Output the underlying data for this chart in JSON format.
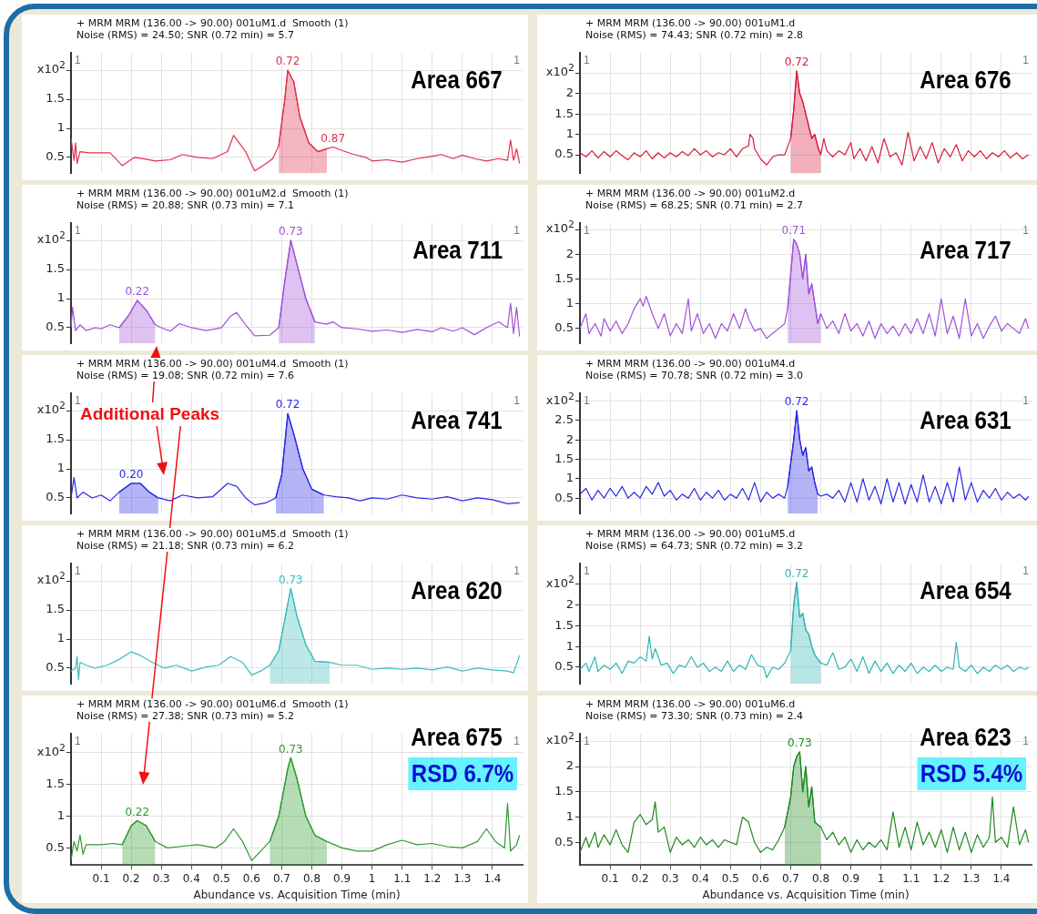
{
  "chart_data": [
    {
      "type": "line",
      "title": "+ MRM MRM (136.00 -> 90.00) 001uM1.d  Smooth (1)",
      "subtitle": "Noise (RMS) = 24.50; SNR (0.72 min) = 5.7",
      "ylabel": "x10$^{2}$",
      "xlim": [
        0,
        1.5
      ],
      "ylim": [
        0.23,
        2.3
      ],
      "xticks": [
        0.1,
        0.2,
        0.3,
        0.4,
        0.5,
        0.6,
        0.7,
        0.8,
        0.9,
        1,
        1.1,
        1.2,
        1.3,
        1.4
      ],
      "yticks": [
        0.5,
        1,
        1.5,
        {
          "value": 2,
          "label": null
        }
      ],
      "grid": true,
      "tick_labels": "y",
      "series": [
        {
          "color": "#e0304c",
          "x": [
            0,
            0.01,
            0.015,
            0.02,
            0.03,
            0.06,
            0.1,
            0.13,
            0.17,
            0.21,
            0.25,
            0.28,
            0.33,
            0.37,
            0.42,
            0.47,
            0.52,
            0.54,
            0.58,
            0.61,
            0.65,
            0.67,
            0.69,
            0.71,
            0.72,
            0.74,
            0.76,
            0.79,
            0.82,
            0.85,
            0.87,
            0.9,
            0.94,
            0.98,
            1,
            1.05,
            1.1,
            1.15,
            1.2,
            1.23,
            1.27,
            1.3,
            1.34,
            1.38,
            1.42,
            1.45,
            1.46,
            1.47,
            1.48,
            1.49
          ],
          "values": [
            0.83,
            0.45,
            0.75,
            0.4,
            0.6,
            0.58,
            0.58,
            0.58,
            0.36,
            0.5,
            0.47,
            0.44,
            0.46,
            0.55,
            0.5,
            0.48,
            0.6,
            0.88,
            0.6,
            0.27,
            0.4,
            0.48,
            0.7,
            1.5,
            2.0,
            1.8,
            1.2,
            0.75,
            0.6,
            0.65,
            0.68,
            0.62,
            0.55,
            0.5,
            0.44,
            0.46,
            0.42,
            0.48,
            0.52,
            0.55,
            0.48,
            0.54,
            0.48,
            0.44,
            0.48,
            0.45,
            0.8,
            0.45,
            0.65,
            0.4
          ]
        },
        {
          "type": "area",
          "color": "#e0304c",
          "x": [
            0.69,
            0.71,
            0.72,
            0.74,
            0.76,
            0.79,
            0.82,
            0.85
          ],
          "values": [
            0.7,
            1.5,
            2.0,
            1.8,
            1.2,
            0.75,
            0.6,
            0.65
          ]
        }
      ],
      "annotations": [
        "1",
        "1",
        "Area 667",
        {
          "text": "0.72",
          "x": 0.72,
          "y": 2.0
        },
        {
          "text": "0.87",
          "x": 0.87,
          "y": 0.68
        }
      ]
    },
    {
      "type": "line",
      "title": "+ MRM MRM (136.00 -> 90.00) 001uM1.d",
      "subtitle": "Noise (RMS) = 74.43; SNR (0.72 min) = 2.8",
      "ylabel": "x10$^{2}$",
      "xlim": [
        0,
        1.5
      ],
      "ylim": [
        0.05,
        3.0
      ],
      "xticks": [
        0.1,
        0.2,
        0.3,
        0.4,
        0.5,
        0.6,
        0.7,
        0.8,
        0.9,
        1,
        1.1,
        1.2,
        1.3,
        1.4
      ],
      "yticks": [
        0.5,
        1,
        1.5,
        2,
        {
          "value": 2.5,
          "label": null
        }
      ],
      "grid": true,
      "tick_labels": "y",
      "series": [
        {
          "color": "#d81b3c",
          "x": [
            0,
            0.02,
            0.04,
            0.06,
            0.08,
            0.1,
            0.12,
            0.14,
            0.16,
            0.18,
            0.2,
            0.22,
            0.24,
            0.26,
            0.28,
            0.3,
            0.32,
            0.34,
            0.36,
            0.38,
            0.4,
            0.42,
            0.44,
            0.46,
            0.48,
            0.5,
            0.52,
            0.54,
            0.56,
            0.565,
            0.575,
            0.58,
            0.6,
            0.62,
            0.64,
            0.66,
            0.68,
            0.7,
            0.71,
            0.72,
            0.73,
            0.74,
            0.75,
            0.76,
            0.77,
            0.78,
            0.79,
            0.8,
            0.81,
            0.82,
            0.84,
            0.86,
            0.88,
            0.9,
            0.91,
            0.93,
            0.95,
            0.97,
            0.99,
            1.01,
            1.03,
            1.05,
            1.07,
            1.09,
            1.11,
            1.13,
            1.15,
            1.17,
            1.19,
            1.21,
            1.23,
            1.25,
            1.27,
            1.29,
            1.31,
            1.33,
            1.35,
            1.37,
            1.39,
            1.41,
            1.43,
            1.45,
            1.47,
            1.49
          ],
          "values": [
            0.55,
            0.45,
            0.6,
            0.42,
            0.58,
            0.45,
            0.6,
            0.48,
            0.38,
            0.55,
            0.45,
            0.6,
            0.4,
            0.55,
            0.42,
            0.55,
            0.45,
            0.58,
            0.48,
            0.65,
            0.5,
            0.6,
            0.45,
            0.55,
            0.5,
            0.65,
            0.45,
            0.65,
            0.72,
            1.0,
            0.9,
            0.65,
            0.4,
            0.25,
            0.45,
            0.5,
            0.5,
            0.9,
            1.6,
            2.55,
            2.0,
            1.8,
            1.5,
            1.2,
            0.9,
            1.0,
            0.7,
            0.5,
            0.9,
            0.6,
            0.45,
            0.6,
            0.5,
            0.8,
            0.4,
            0.65,
            0.35,
            0.7,
            0.3,
            0.9,
            0.45,
            0.55,
            0.25,
            1.05,
            0.35,
            0.7,
            0.4,
            0.8,
            0.3,
            0.65,
            0.45,
            0.75,
            0.35,
            0.6,
            0.45,
            0.6,
            0.4,
            0.55,
            0.45,
            0.6,
            0.42,
            0.55,
            0.4,
            0.5
          ]
        },
        {
          "type": "area",
          "color": "#d81b3c",
          "x": [
            0.7,
            0.71,
            0.72,
            0.73,
            0.74,
            0.75,
            0.76,
            0.77,
            0.78,
            0.79,
            0.8
          ],
          "values": [
            0.9,
            1.6,
            2.55,
            2.0,
            1.8,
            1.5,
            1.2,
            0.9,
            1.0,
            0.7,
            0.5
          ]
        }
      ],
      "annotations": [
        "1",
        "1",
        "Area 676",
        {
          "text": "0.72",
          "x": 0.72,
          "y": 2.55
        }
      ]
    },
    {
      "type": "line",
      "title": "+ MRM MRM (136.00 -> 90.00) 001uM2.d  Smooth (1)",
      "subtitle": "Noise (RMS) = 20.88; SNR (0.73 min) = 7.1",
      "ylabel": "x10$^{2}$",
      "xlim": [
        0,
        1.5
      ],
      "ylim": [
        0.23,
        2.3
      ],
      "xticks": [
        0.1,
        0.2,
        0.3,
        0.4,
        0.5,
        0.6,
        0.7,
        0.8,
        0.9,
        1,
        1.1,
        1.2,
        1.3,
        1.4
      ],
      "yticks": [
        0.5,
        1,
        1.5,
        {
          "value": 2,
          "label": null
        }
      ],
      "grid": true,
      "tick_labels": "y",
      "series": [
        {
          "color": "#a050d8",
          "x": [
            0,
            0.005,
            0.015,
            0.03,
            0.05,
            0.08,
            0.1,
            0.13,
            0.16,
            0.19,
            0.22,
            0.25,
            0.28,
            0.3,
            0.33,
            0.36,
            0.4,
            0.45,
            0.5,
            0.53,
            0.55,
            0.58,
            0.61,
            0.66,
            0.69,
            0.71,
            0.73,
            0.75,
            0.78,
            0.81,
            0.85,
            0.87,
            0.9,
            0.95,
            1,
            1.05,
            1.1,
            1.15,
            1.2,
            1.23,
            1.27,
            1.3,
            1.34,
            1.38,
            1.42,
            1.45,
            1.46,
            1.47,
            1.48,
            1.49
          ],
          "values": [
            0.5,
            0.85,
            0.45,
            0.55,
            0.45,
            0.5,
            0.48,
            0.55,
            0.5,
            0.7,
            0.97,
            0.8,
            0.55,
            0.5,
            0.44,
            0.57,
            0.5,
            0.45,
            0.5,
            0.7,
            0.76,
            0.55,
            0.36,
            0.37,
            0.5,
            1.3,
            2.0,
            1.6,
            1.0,
            0.6,
            0.56,
            0.6,
            0.5,
            0.48,
            0.44,
            0.46,
            0.42,
            0.47,
            0.43,
            0.5,
            0.44,
            0.5,
            0.38,
            0.5,
            0.6,
            0.5,
            0.92,
            0.4,
            0.85,
            0.35
          ]
        },
        {
          "type": "area",
          "color": "#a050d8",
          "x": [
            0.16,
            0.19,
            0.22,
            0.25,
            0.28
          ],
          "values": [
            0.5,
            0.7,
            0.97,
            0.8,
            0.55
          ]
        },
        {
          "type": "area",
          "color": "#a050d8",
          "x": [
            0.69,
            0.71,
            0.73,
            0.75,
            0.78,
            0.81
          ],
          "values": [
            0.5,
            1.3,
            2.0,
            1.6,
            1.0,
            0.6
          ]
        }
      ],
      "annotations": [
        "1",
        "1",
        "Area 711",
        {
          "text": "0.73",
          "x": 0.73,
          "y": 2.0
        },
        {
          "text": "0.22",
          "x": 0.22,
          "y": 0.97
        }
      ]
    },
    {
      "type": "line",
      "title": "+ MRM MRM (136.00 -> 90.00) 001uM2.d",
      "subtitle": "Noise (RMS) = 68.25; SNR (0.71 min) = 2.7",
      "ylabel": "x10$^{2}$",
      "xlim": [
        0,
        1.5
      ],
      "ylim": [
        0.2,
        2.63
      ],
      "xticks": [
        0.1,
        0.2,
        0.3,
        0.4,
        0.5,
        0.6,
        0.7,
        0.8,
        0.9,
        1,
        1.1,
        1.2,
        1.3,
        1.4
      ],
      "yticks": [
        0.5,
        1,
        1.5,
        2,
        {
          "value": 2.5,
          "label": null
        }
      ],
      "grid": true,
      "tick_labels": "y",
      "series": [
        {
          "color": "#a050d8",
          "x": [
            0,
            0.02,
            0.03,
            0.05,
            0.07,
            0.08,
            0.1,
            0.12,
            0.14,
            0.16,
            0.18,
            0.2,
            0.21,
            0.22,
            0.24,
            0.26,
            0.28,
            0.3,
            0.32,
            0.34,
            0.36,
            0.37,
            0.39,
            0.41,
            0.43,
            0.45,
            0.47,
            0.49,
            0.51,
            0.53,
            0.55,
            0.56,
            0.58,
            0.6,
            0.62,
            0.64,
            0.66,
            0.68,
            0.69,
            0.7,
            0.71,
            0.72,
            0.73,
            0.74,
            0.75,
            0.76,
            0.77,
            0.78,
            0.79,
            0.8,
            0.82,
            0.84,
            0.86,
            0.88,
            0.9,
            0.92,
            0.94,
            0.96,
            0.98,
            1,
            1.02,
            1.04,
            1.06,
            1.08,
            1.1,
            1.12,
            1.14,
            1.16,
            1.18,
            1.2,
            1.22,
            1.24,
            1.26,
            1.28,
            1.3,
            1.32,
            1.34,
            1.36,
            1.38,
            1.4,
            1.42,
            1.44,
            1.46,
            1.48,
            1.49
          ],
          "values": [
            0.5,
            0.8,
            0.4,
            0.6,
            0.35,
            0.7,
            0.45,
            0.65,
            0.4,
            0.6,
            0.9,
            1.1,
            0.95,
            1.15,
            0.8,
            0.5,
            0.8,
            0.35,
            0.6,
            0.4,
            1.1,
            0.45,
            0.8,
            0.4,
            0.6,
            0.3,
            0.6,
            0.45,
            0.8,
            0.5,
            0.9,
            0.7,
            0.45,
            0.5,
            0.3,
            0.4,
            0.5,
            0.6,
            0.9,
            1.6,
            2.3,
            2.2,
            2.0,
            1.5,
            2.0,
            1.2,
            1.4,
            1.0,
            0.6,
            0.8,
            0.5,
            0.65,
            0.4,
            0.8,
            0.45,
            0.6,
            0.35,
            0.65,
            0.3,
            0.6,
            0.4,
            0.55,
            0.35,
            0.6,
            0.4,
            0.7,
            0.4,
            0.8,
            0.35,
            1.1,
            0.4,
            0.75,
            0.3,
            1.1,
            0.35,
            0.6,
            0.3,
            0.55,
            0.75,
            0.45,
            0.6,
            0.5,
            0.4,
            0.7,
            0.5
          ]
        },
        {
          "type": "area",
          "color": "#a050d8",
          "x": [
            0.69,
            0.7,
            0.71,
            0.72,
            0.73,
            0.74,
            0.75,
            0.76,
            0.77,
            0.78,
            0.79,
            0.8
          ],
          "values": [
            0.9,
            1.6,
            2.3,
            2.2,
            2.0,
            1.5,
            2.0,
            1.2,
            1.4,
            1.0,
            0.6,
            0.8
          ]
        }
      ],
      "annotations": [
        "1",
        "1",
        "Area 717",
        {
          "text": "0.71",
          "x": 0.71,
          "y": 2.3
        }
      ]
    },
    {
      "type": "line",
      "title": "+ MRM MRM (136.00 -> 90.00) 001uM4.d  Smooth (1)",
      "subtitle": "Noise (RMS) = 19.08; SNR (0.72 min) = 7.6",
      "ylabel": "x10$^{2}$",
      "xlim": [
        0,
        1.5
      ],
      "ylim": [
        0.23,
        2.3
      ],
      "xticks": [
        0.1,
        0.2,
        0.3,
        0.4,
        0.5,
        0.6,
        0.7,
        0.8,
        0.9,
        1,
        1.1,
        1.2,
        1.3,
        1.4
      ],
      "yticks": [
        0.5,
        1,
        1.5,
        {
          "value": 2,
          "label": null
        }
      ],
      "grid": true,
      "tick_labels": "y",
      "series": [
        {
          "color": "#2828e8",
          "x": [
            0,
            0.01,
            0.02,
            0.04,
            0.07,
            0.1,
            0.13,
            0.16,
            0.2,
            0.23,
            0.26,
            0.29,
            0.33,
            0.37,
            0.42,
            0.47,
            0.52,
            0.55,
            0.58,
            0.61,
            0.65,
            0.68,
            0.7,
            0.72,
            0.74,
            0.77,
            0.8,
            0.84,
            0.88,
            0.92,
            0.96,
            1,
            1.05,
            1.1,
            1.15,
            1.2,
            1.25,
            1.3,
            1.35,
            1.4,
            1.45,
            1.49
          ],
          "values": [
            0.5,
            0.85,
            0.5,
            0.6,
            0.5,
            0.55,
            0.45,
            0.6,
            0.75,
            0.75,
            0.6,
            0.5,
            0.45,
            0.55,
            0.5,
            0.52,
            0.75,
            0.7,
            0.5,
            0.38,
            0.42,
            0.5,
            0.9,
            1.95,
            1.6,
            1.0,
            0.65,
            0.55,
            0.52,
            0.5,
            0.45,
            0.5,
            0.48,
            0.55,
            0.5,
            0.48,
            0.52,
            0.45,
            0.5,
            0.47,
            0.4,
            0.42
          ]
        },
        {
          "type": "area",
          "color": "#2828e8",
          "x": [
            0.16,
            0.2,
            0.23,
            0.26,
            0.29
          ],
          "values": [
            0.6,
            0.75,
            0.75,
            0.6,
            0.5
          ]
        },
        {
          "type": "area",
          "color": "#2828e8",
          "x": [
            0.68,
            0.7,
            0.72,
            0.74,
            0.77,
            0.8,
            0.84
          ],
          "values": [
            0.5,
            0.9,
            1.95,
            1.6,
            1.0,
            0.65,
            0.55
          ]
        }
      ],
      "annotations": [
        "1",
        "1",
        "Area 741",
        "Additional Peaks",
        {
          "text": "0.72",
          "x": 0.72,
          "y": 1.95
        },
        {
          "text": "0.20",
          "x": 0.2,
          "y": 0.75
        }
      ]
    },
    {
      "type": "line",
      "title": "+ MRM MRM (136.00 -> 90.00) 001uM4.d",
      "subtitle": "Noise (RMS) = 70.78; SNR (0.72 min) = 3.0",
      "ylabel": "x10$^{2}$",
      "xlim": [
        0,
        1.5
      ],
      "ylim": [
        0.1,
        3.2
      ],
      "xticks": [
        0.1,
        0.2,
        0.3,
        0.4,
        0.5,
        0.6,
        0.7,
        0.8,
        0.9,
        1,
        1.1,
        1.2,
        1.3,
        1.4
      ],
      "yticks": [
        0.5,
        1,
        1.5,
        2,
        2.5,
        {
          "value": 3,
          "label": null
        }
      ],
      "grid": true,
      "tick_labels": "y",
      "series": [
        {
          "color": "#2828e8",
          "x": [
            0,
            0.02,
            0.04,
            0.06,
            0.08,
            0.1,
            0.12,
            0.14,
            0.16,
            0.18,
            0.2,
            0.22,
            0.24,
            0.26,
            0.28,
            0.3,
            0.32,
            0.34,
            0.36,
            0.38,
            0.4,
            0.42,
            0.44,
            0.46,
            0.48,
            0.5,
            0.52,
            0.54,
            0.56,
            0.58,
            0.6,
            0.62,
            0.64,
            0.66,
            0.68,
            0.69,
            0.7,
            0.71,
            0.72,
            0.73,
            0.74,
            0.75,
            0.76,
            0.77,
            0.78,
            0.79,
            0.8,
            0.82,
            0.84,
            0.86,
            0.88,
            0.9,
            0.92,
            0.94,
            0.96,
            0.98,
            1,
            1.02,
            1.04,
            1.06,
            1.08,
            1.1,
            1.12,
            1.14,
            1.16,
            1.18,
            1.2,
            1.22,
            1.24,
            1.26,
            1.28,
            1.3,
            1.32,
            1.34,
            1.36,
            1.38,
            1.4,
            1.42,
            1.44,
            1.46,
            1.48,
            1.49
          ],
          "values": [
            0.6,
            0.75,
            0.45,
            0.7,
            0.5,
            0.75,
            0.55,
            0.8,
            0.5,
            0.65,
            0.5,
            0.8,
            0.6,
            0.9,
            0.55,
            0.7,
            0.45,
            0.6,
            0.5,
            0.75,
            0.45,
            0.65,
            0.5,
            0.7,
            0.45,
            0.6,
            0.5,
            0.75,
            0.45,
            0.9,
            0.4,
            0.65,
            0.5,
            0.6,
            0.5,
            0.8,
            1.4,
            2.0,
            2.75,
            2.0,
            1.6,
            1.8,
            1.2,
            1.3,
            0.9,
            0.6,
            0.55,
            0.6,
            0.5,
            0.7,
            0.4,
            0.9,
            0.4,
            1.0,
            0.45,
            0.8,
            0.35,
            1.0,
            0.4,
            0.9,
            0.35,
            0.85,
            0.4,
            1.1,
            0.4,
            0.8,
            0.35,
            0.9,
            0.4,
            1.3,
            0.45,
            0.9,
            0.4,
            0.7,
            0.5,
            0.75,
            0.45,
            0.65,
            0.5,
            0.6,
            0.45,
            0.55
          ]
        },
        {
          "type": "area",
          "color": "#2828e8",
          "x": [
            0.69,
            0.7,
            0.71,
            0.72,
            0.73,
            0.74,
            0.75,
            0.76,
            0.77,
            0.78,
            0.79
          ],
          "values": [
            0.8,
            1.4,
            2.0,
            2.75,
            2.0,
            1.6,
            1.8,
            1.2,
            1.3,
            0.9,
            0.6
          ]
        }
      ],
      "annotations": [
        "1",
        "1",
        "Area 631",
        {
          "text": "0.72",
          "x": 0.72,
          "y": 2.75
        }
      ]
    },
    {
      "type": "line",
      "title": "+ MRM MRM (136.00 -> 90.00) 001uM5.d  Smooth (1)",
      "subtitle": "Noise (RMS) = 21.18; SNR (0.73 min) = 6.2",
      "ylabel": "x10$^{2}$",
      "xlim": [
        0,
        1.5
      ],
      "ylim": [
        0.23,
        2.3
      ],
      "xticks": [
        0.1,
        0.2,
        0.3,
        0.4,
        0.5,
        0.6,
        0.7,
        0.8,
        0.9,
        1,
        1.1,
        1.2,
        1.3,
        1.4
      ],
      "yticks": [
        0.5,
        1,
        1.5,
        {
          "value": 2,
          "label": null
        }
      ],
      "grid": true,
      "tick_labels": "y",
      "series": [
        {
          "color": "#40bcbc",
          "x": [
            0,
            0.015,
            0.02,
            0.025,
            0.03,
            0.05,
            0.08,
            0.12,
            0.16,
            0.2,
            0.23,
            0.27,
            0.31,
            0.35,
            0.4,
            0.45,
            0.49,
            0.53,
            0.57,
            0.6,
            0.63,
            0.66,
            0.69,
            0.73,
            0.75,
            0.78,
            0.81,
            0.86,
            0.9,
            0.95,
            1,
            1.05,
            1.1,
            1.15,
            1.2,
            1.25,
            1.3,
            1.35,
            1.4,
            1.45,
            1.47,
            1.49
          ],
          "values": [
            0.45,
            0.5,
            0.7,
            0.3,
            0.6,
            0.55,
            0.5,
            0.55,
            0.65,
            0.78,
            0.72,
            0.6,
            0.5,
            0.55,
            0.45,
            0.52,
            0.55,
            0.7,
            0.6,
            0.38,
            0.45,
            0.55,
            0.8,
            1.87,
            1.4,
            0.9,
            0.62,
            0.6,
            0.55,
            0.55,
            0.48,
            0.5,
            0.48,
            0.5,
            0.47,
            0.52,
            0.45,
            0.5,
            0.47,
            0.45,
            0.42,
            0.72
          ]
        },
        {
          "type": "area",
          "color": "#40bcbc",
          "x": [
            0.66,
            0.69,
            0.73,
            0.75,
            0.78,
            0.81,
            0.86
          ],
          "values": [
            0.55,
            0.8,
            1.87,
            1.4,
            0.9,
            0.62,
            0.6
          ]
        }
      ],
      "annotations": [
        "1",
        "1",
        "Area 620",
        {
          "text": "0.73",
          "x": 0.73,
          "y": 1.87
        }
      ]
    },
    {
      "type": "line",
      "title": "+ MRM MRM (136.00 -> 90.00) 001uM5.d",
      "subtitle": "Noise (RMS) = 64.73; SNR (0.72 min) = 3.2",
      "ylabel": "x10$^{2}$",
      "xlim": [
        0,
        1.5
      ],
      "ylim": [
        0.1,
        3.0
      ],
      "xticks": [
        0.1,
        0.2,
        0.3,
        0.4,
        0.5,
        0.6,
        0.7,
        0.8,
        0.9,
        1,
        1.1,
        1.2,
        1.3,
        1.4
      ],
      "yticks": [
        0.5,
        1,
        1.5,
        2,
        {
          "value": 2.5,
          "label": null
        }
      ],
      "grid": true,
      "tick_labels": "y",
      "series": [
        {
          "color": "#30b4b4",
          "x": [
            0,
            0.02,
            0.03,
            0.05,
            0.06,
            0.08,
            0.1,
            0.12,
            0.14,
            0.16,
            0.18,
            0.2,
            0.22,
            0.23,
            0.24,
            0.25,
            0.27,
            0.29,
            0.31,
            0.33,
            0.35,
            0.37,
            0.39,
            0.41,
            0.43,
            0.45,
            0.47,
            0.49,
            0.51,
            0.53,
            0.55,
            0.57,
            0.59,
            0.61,
            0.62,
            0.64,
            0.66,
            0.68,
            0.7,
            0.71,
            0.72,
            0.73,
            0.74,
            0.75,
            0.76,
            0.77,
            0.78,
            0.8,
            0.82,
            0.84,
            0.86,
            0.88,
            0.9,
            0.92,
            0.94,
            0.96,
            0.98,
            1,
            1.02,
            1.04,
            1.06,
            1.08,
            1.1,
            1.12,
            1.14,
            1.16,
            1.18,
            1.2,
            1.22,
            1.24,
            1.25,
            1.26,
            1.28,
            1.3,
            1.32,
            1.34,
            1.36,
            1.38,
            1.4,
            1.42,
            1.44,
            1.46,
            1.48,
            1.49
          ],
          "values": [
            0.45,
            0.6,
            0.4,
            0.75,
            0.4,
            0.55,
            0.45,
            0.6,
            0.35,
            0.65,
            0.6,
            0.75,
            0.65,
            1.25,
            0.7,
            0.95,
            0.55,
            0.6,
            0.35,
            0.55,
            0.5,
            0.75,
            0.5,
            0.6,
            0.4,
            0.5,
            0.4,
            0.65,
            0.4,
            0.55,
            0.45,
            0.8,
            0.55,
            0.5,
            0.25,
            0.5,
            0.45,
            0.6,
            0.9,
            2.0,
            2.55,
            1.7,
            1.8,
            1.4,
            1.3,
            1.0,
            0.8,
            0.6,
            0.55,
            0.85,
            0.45,
            0.5,
            0.7,
            0.4,
            0.75,
            0.35,
            0.65,
            0.4,
            0.6,
            0.35,
            0.55,
            0.4,
            0.6,
            0.35,
            0.5,
            0.4,
            0.55,
            0.4,
            0.5,
            0.45,
            1.1,
            0.5,
            0.4,
            0.55,
            0.35,
            0.5,
            0.4,
            0.55,
            0.45,
            0.55,
            0.4,
            0.5,
            0.45,
            0.5
          ]
        },
        {
          "type": "area",
          "color": "#30b4b4",
          "x": [
            0.7,
            0.71,
            0.72,
            0.73,
            0.74,
            0.75,
            0.76,
            0.77,
            0.78,
            0.8
          ],
          "values": [
            0.9,
            2.0,
            2.55,
            1.7,
            1.8,
            1.4,
            1.3,
            1.0,
            0.8,
            0.6
          ]
        }
      ],
      "annotations": [
        "1",
        "1",
        "Area 654",
        {
          "text": "0.72",
          "x": 0.72,
          "y": 2.55
        }
      ]
    },
    {
      "type": "line",
      "title": "+ MRM MRM (136.00 -> 90.00) 001uM6.d  Smooth (1)",
      "subtitle": "Noise (RMS) = 27.38; SNR (0.73 min) = 5.2",
      "xlabel": "Abundance vs. Acquisition Time (min)",
      "ylabel": "x10$^{2}$",
      "xlim": [
        0,
        1.5
      ],
      "ylim": [
        0.23,
        2.3
      ],
      "xticks": [
        0.1,
        0.2,
        0.3,
        0.4,
        0.5,
        0.6,
        0.7,
        0.8,
        0.9,
        1,
        1.1,
        1.2,
        1.3,
        1.4
      ],
      "yticks": [
        0.5,
        1,
        1.5,
        {
          "value": 2,
          "label": null
        }
      ],
      "grid": true,
      "series": [
        {
          "color": "#2e9a2e",
          "x": [
            0,
            0.01,
            0.02,
            0.03,
            0.04,
            0.05,
            0.1,
            0.14,
            0.17,
            0.2,
            0.22,
            0.25,
            0.28,
            0.32,
            0.36,
            0.42,
            0.48,
            0.51,
            0.54,
            0.57,
            0.6,
            0.63,
            0.66,
            0.69,
            0.72,
            0.73,
            0.75,
            0.78,
            0.81,
            0.85,
            0.9,
            0.95,
            1,
            1.05,
            1.1,
            1.15,
            1.2,
            1.25,
            1.3,
            1.35,
            1.38,
            1.41,
            1.44,
            1.45,
            1.46,
            1.48,
            1.49
          ],
          "values": [
            0.3,
            0.6,
            0.45,
            0.7,
            0.4,
            0.55,
            0.55,
            0.57,
            0.55,
            0.85,
            0.93,
            0.85,
            0.6,
            0.5,
            0.52,
            0.55,
            0.5,
            0.6,
            0.8,
            0.6,
            0.3,
            0.45,
            0.6,
            1.0,
            1.75,
            1.92,
            1.6,
            1.0,
            0.7,
            0.6,
            0.5,
            0.45,
            0.45,
            0.55,
            0.62,
            0.55,
            0.57,
            0.52,
            0.5,
            0.6,
            0.8,
            0.6,
            0.5,
            1.2,
            0.45,
            0.55,
            0.7
          ]
        },
        {
          "type": "area",
          "color": "#2e9a2e",
          "x": [
            0.17,
            0.2,
            0.22,
            0.25,
            0.28
          ],
          "values": [
            0.55,
            0.85,
            0.93,
            0.85,
            0.6
          ]
        },
        {
          "type": "area",
          "color": "#2e9a2e",
          "x": [
            0.66,
            0.69,
            0.72,
            0.73,
            0.75,
            0.78,
            0.81,
            0.85
          ],
          "values": [
            0.6,
            1.0,
            1.75,
            1.92,
            1.6,
            1.0,
            0.7,
            0.6
          ]
        }
      ],
      "annotations": [
        "1",
        "1",
        "Area 675",
        "RSD 6.7%",
        {
          "text": "0.73",
          "x": 0.73,
          "y": 1.92
        },
        {
          "text": "0.22",
          "x": 0.22,
          "y": 0.93
        }
      ]
    },
    {
      "type": "line",
      "title": "+ MRM MRM (136.00 -> 90.00) 001uM6.d",
      "subtitle": "Noise (RMS) = 73.30; SNR (0.73 min) = 2.4",
      "xlabel": "Abundance vs. Acquisition Time (min)",
      "ylabel": "x10$^{2}$",
      "xlim": [
        0,
        1.5
      ],
      "ylim": [
        0.05,
        2.65
      ],
      "xticks": [
        0.1,
        0.2,
        0.3,
        0.4,
        0.5,
        0.6,
        0.7,
        0.8,
        0.9,
        1,
        1.1,
        1.2,
        1.3,
        1.4
      ],
      "yticks": [
        0.5,
        1,
        1.5,
        2,
        {
          "value": 2.5,
          "label": null
        }
      ],
      "grid": true,
      "series": [
        {
          "color": "#1e8a1e",
          "x": [
            0,
            0.02,
            0.03,
            0.05,
            0.06,
            0.08,
            0.1,
            0.12,
            0.14,
            0.16,
            0.18,
            0.2,
            0.22,
            0.24,
            0.25,
            0.26,
            0.28,
            0.3,
            0.32,
            0.34,
            0.36,
            0.38,
            0.4,
            0.42,
            0.44,
            0.46,
            0.48,
            0.5,
            0.52,
            0.54,
            0.56,
            0.58,
            0.6,
            0.62,
            0.64,
            0.66,
            0.68,
            0.7,
            0.71,
            0.72,
            0.73,
            0.74,
            0.75,
            0.76,
            0.77,
            0.78,
            0.8,
            0.82,
            0.84,
            0.86,
            0.88,
            0.9,
            0.92,
            0.94,
            0.96,
            0.98,
            1,
            1.02,
            1.04,
            1.06,
            1.08,
            1.1,
            1.12,
            1.14,
            1.16,
            1.18,
            1.2,
            1.22,
            1.24,
            1.26,
            1.28,
            1.3,
            1.32,
            1.34,
            1.36,
            1.37,
            1.38,
            1.4,
            1.42,
            1.44,
            1.46,
            1.48,
            1.49
          ],
          "values": [
            0.3,
            0.6,
            0.4,
            0.7,
            0.4,
            0.65,
            0.45,
            0.75,
            0.45,
            0.3,
            0.9,
            1.05,
            0.85,
            0.95,
            1.3,
            0.7,
            0.8,
            0.3,
            0.6,
            0.45,
            0.55,
            0.4,
            0.6,
            0.45,
            0.55,
            0.4,
            0.55,
            0.5,
            0.45,
            1.0,
            0.9,
            0.5,
            0.3,
            0.4,
            0.35,
            0.55,
            0.8,
            1.4,
            2.0,
            2.2,
            2.29,
            1.5,
            2.0,
            1.2,
            1.6,
            0.9,
            0.8,
            0.55,
            0.7,
            0.45,
            0.6,
            0.3,
            0.55,
            0.35,
            0.5,
            0.4,
            0.55,
            0.35,
            1.1,
            0.4,
            0.8,
            0.35,
            0.9,
            0.45,
            0.7,
            0.4,
            0.75,
            0.3,
            0.8,
            0.35,
            0.7,
            0.3,
            0.65,
            0.4,
            0.6,
            1.4,
            0.5,
            0.6,
            0.4,
            1.2,
            0.45,
            0.75,
            0.5
          ]
        },
        {
          "type": "area",
          "color": "#1e8a1e",
          "x": [
            0.68,
            0.7,
            0.71,
            0.72,
            0.73,
            0.74,
            0.75,
            0.76,
            0.77,
            0.78,
            0.8
          ],
          "values": [
            0.8,
            1.4,
            2.0,
            2.2,
            2.29,
            1.5,
            2.0,
            1.2,
            1.6,
            0.9,
            0.8
          ]
        }
      ],
      "annotations": [
        "1",
        "1",
        "Area 623",
        "RSD 5.4%",
        {
          "text": "0.73",
          "x": 0.73,
          "y": 2.29
        }
      ]
    }
  ]
}
